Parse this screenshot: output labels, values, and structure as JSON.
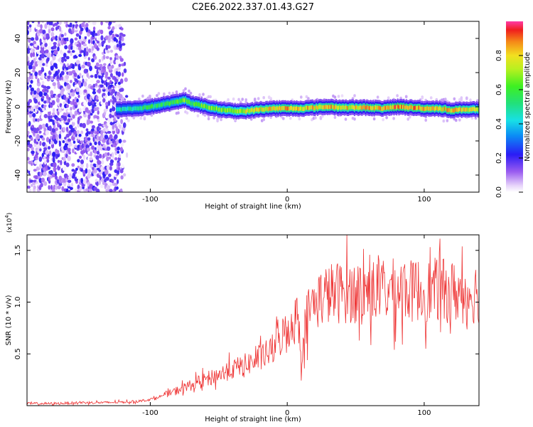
{
  "title": "C2E6.2022.337.01.43.G27",
  "chart_data": [
    {
      "type": "heatmap",
      "xlabel": "Height of straight line (km)",
      "ylabel": "Frequency (Hz)",
      "xlim": [
        -190,
        140
      ],
      "ylim": [
        -50,
        50
      ],
      "xticks": [
        -100,
        0,
        100
      ],
      "xtick_labels": [
        "-100",
        "0",
        "100"
      ],
      "yticks": [
        -40,
        -20,
        0,
        20,
        40
      ],
      "ytick_labels": [
        "-40",
        "-20",
        "0",
        "20",
        "40"
      ],
      "grid": false,
      "colorbar": {
        "label": "Normalized spectral amplitude",
        "range": [
          0,
          1
        ],
        "ticks": [
          0.0,
          0.2,
          0.4,
          0.6,
          0.8
        ],
        "tick_labels": [
          "0.0",
          "0.2",
          "0.4",
          "0.6",
          "0.8"
        ]
      },
      "noise_region_x": [
        -190,
        -125
      ],
      "signal_ridge": {
        "x": [
          -125,
          -110,
          -100,
          -90,
          -80,
          -75,
          -70,
          -60,
          -50,
          -40,
          -30,
          -20,
          -10,
          0,
          10,
          20,
          30,
          40,
          50,
          60,
          70,
          80,
          90,
          100,
          110,
          120,
          130,
          140
        ],
        "freq": [
          -1.5,
          -1,
          0,
          1.5,
          3,
          4,
          2,
          0,
          -1.5,
          -2.5,
          -2.5,
          -1.5,
          -1,
          -1,
          -1,
          -0.5,
          0,
          -0.5,
          -0.5,
          -0.5,
          -1,
          0,
          -0.5,
          -1,
          -1,
          -2,
          -1.5,
          -1.5
        ],
        "peak_amplitude": [
          0.5,
          0.55,
          0.6,
          0.6,
          0.65,
          0.7,
          0.65,
          0.7,
          0.7,
          0.75,
          0.8,
          0.85,
          0.85,
          0.9,
          0.85,
          0.85,
          0.9,
          0.85,
          0.85,
          0.9,
          0.85,
          0.95,
          0.9,
          0.9,
          0.85,
          0.9,
          0.85,
          0.8
        ]
      }
    },
    {
      "type": "line",
      "xlabel": "Height of straight line (km)",
      "ylabel": "SNR (10 * v/v)",
      "y_multiplier": "(x10",
      "y_multiplier_exp": "4",
      "y_multiplier_close": ")",
      "xlim": [
        -190,
        140
      ],
      "ylim": [
        0,
        1.65
      ],
      "xticks": [
        -100,
        0,
        100
      ],
      "xtick_labels": [
        "-100",
        "0",
        "100"
      ],
      "yticks": [
        0.5,
        1.0,
        1.5
      ],
      "ytick_labels": [
        "0.5",
        "1.0",
        "1.5"
      ],
      "grid": false,
      "series": [
        {
          "color": "#ee3333",
          "x": [
            -190,
            -170,
            -150,
            -130,
            -110,
            -100,
            -90,
            -80,
            -70,
            -60,
            -50,
            -40,
            -30,
            -20,
            -10,
            -5,
            0,
            5,
            8,
            10,
            12,
            15,
            20,
            25,
            30,
            40,
            50,
            60,
            70,
            80,
            85,
            90,
            95,
            100,
            110,
            120,
            130,
            140
          ],
          "y": [
            0.02,
            0.02,
            0.03,
            0.03,
            0.04,
            0.06,
            0.1,
            0.15,
            0.2,
            0.25,
            0.3,
            0.35,
            0.4,
            0.45,
            0.55,
            0.65,
            0.75,
            0.8,
            0.9,
            0.45,
            0.7,
            0.9,
            1.0,
            1.05,
            1.08,
            1.1,
            1.1,
            1.12,
            1.1,
            1.12,
            1.15,
            1.1,
            1.12,
            1.1,
            1.12,
            1.1,
            1.08,
            1.1
          ]
        }
      ]
    }
  ]
}
